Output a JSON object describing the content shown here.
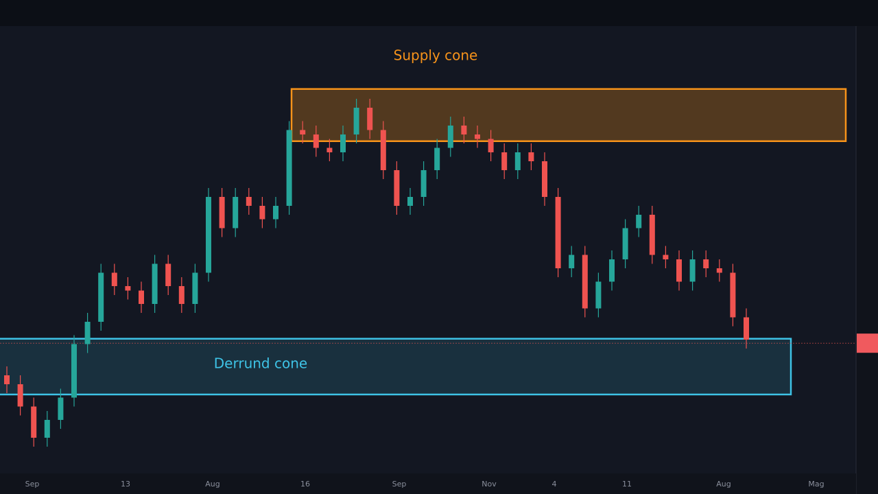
{
  "chart_data": {
    "type": "candlestick",
    "up_color": "#26a69a",
    "down_color": "#ef5350",
    "ylim": [
      0,
      100
    ],
    "open": [
      22,
      20,
      15,
      8,
      12,
      17,
      29,
      34,
      45,
      42,
      41,
      38,
      47,
      42,
      38,
      45,
      62,
      55,
      62,
      60,
      57,
      60,
      77,
      76,
      73,
      72,
      76,
      82,
      77,
      68,
      60,
      62,
      68,
      73,
      78,
      76,
      75,
      72,
      68,
      72,
      70,
      62,
      46,
      49,
      37,
      43,
      48,
      55,
      58,
      49,
      48,
      43,
      48,
      46,
      45,
      35
    ],
    "high": [
      24,
      22,
      17,
      14,
      19,
      31,
      36,
      47,
      47,
      44,
      43,
      49,
      49,
      44,
      47,
      64,
      64,
      64,
      64,
      62,
      62,
      79,
      79,
      78,
      75,
      78,
      84,
      84,
      79,
      70,
      64,
      70,
      75,
      80,
      80,
      78,
      77,
      74,
      74,
      74,
      72,
      64,
      51,
      51,
      45,
      50,
      57,
      60,
      60,
      51,
      50,
      50,
      50,
      48,
      47,
      37
    ],
    "low": [
      18,
      13,
      6,
      6,
      10,
      15,
      27,
      32,
      40,
      39,
      36,
      36,
      40,
      36,
      36,
      43,
      53,
      53,
      58,
      55,
      55,
      58,
      74,
      71,
      70,
      70,
      74,
      75,
      66,
      58,
      58,
      60,
      66,
      71,
      74,
      73,
      70,
      66,
      66,
      68,
      60,
      44,
      44,
      35,
      35,
      41,
      46,
      53,
      47,
      46,
      41,
      41,
      44,
      43,
      33,
      28
    ],
    "close": [
      20,
      15,
      8,
      12,
      17,
      29,
      34,
      45,
      42,
      41,
      38,
      47,
      42,
      38,
      45,
      62,
      55,
      62,
      60,
      57,
      60,
      77,
      76,
      73,
      72,
      76,
      82,
      77,
      68,
      60,
      62,
      68,
      73,
      78,
      76,
      75,
      72,
      68,
      72,
      70,
      62,
      46,
      49,
      37,
      43,
      48,
      55,
      58,
      49,
      48,
      43,
      48,
      46,
      45,
      35,
      30
    ],
    "zones": [
      {
        "label": "Supply cone",
        "top": 86.2,
        "bottom": 74.5,
        "color": "#f7931a"
      },
      {
        "label": "Derrund cone",
        "top": 30.2,
        "bottom": 17.7,
        "color": "#3ec3e6"
      }
    ],
    "last_price": 29.2,
    "x_labels": [
      "Sep",
      "13",
      "Aug",
      "16",
      "Sep",
      "Nov",
      "4",
      "11",
      "Aug",
      "Mag"
    ]
  }
}
